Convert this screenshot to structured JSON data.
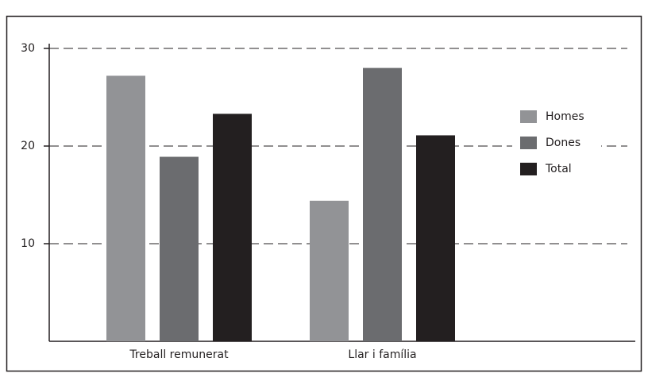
{
  "chart_data": {
    "type": "bar",
    "categories": [
      "Treball remunerat",
      "Llar i família"
    ],
    "series": [
      {
        "name": "Homes",
        "color": "#929396",
        "values": [
          27.2,
          14.4
        ]
      },
      {
        "name": "Dones",
        "color": "#6b6c6f",
        "values": [
          18.9,
          28.0
        ]
      },
      {
        "name": "Total",
        "color": "#231f20",
        "values": [
          23.3,
          21.1
        ]
      }
    ],
    "ylim": [
      0,
      30
    ],
    "yticks": [
      10,
      20,
      30
    ],
    "grid": true,
    "legend": "right"
  }
}
